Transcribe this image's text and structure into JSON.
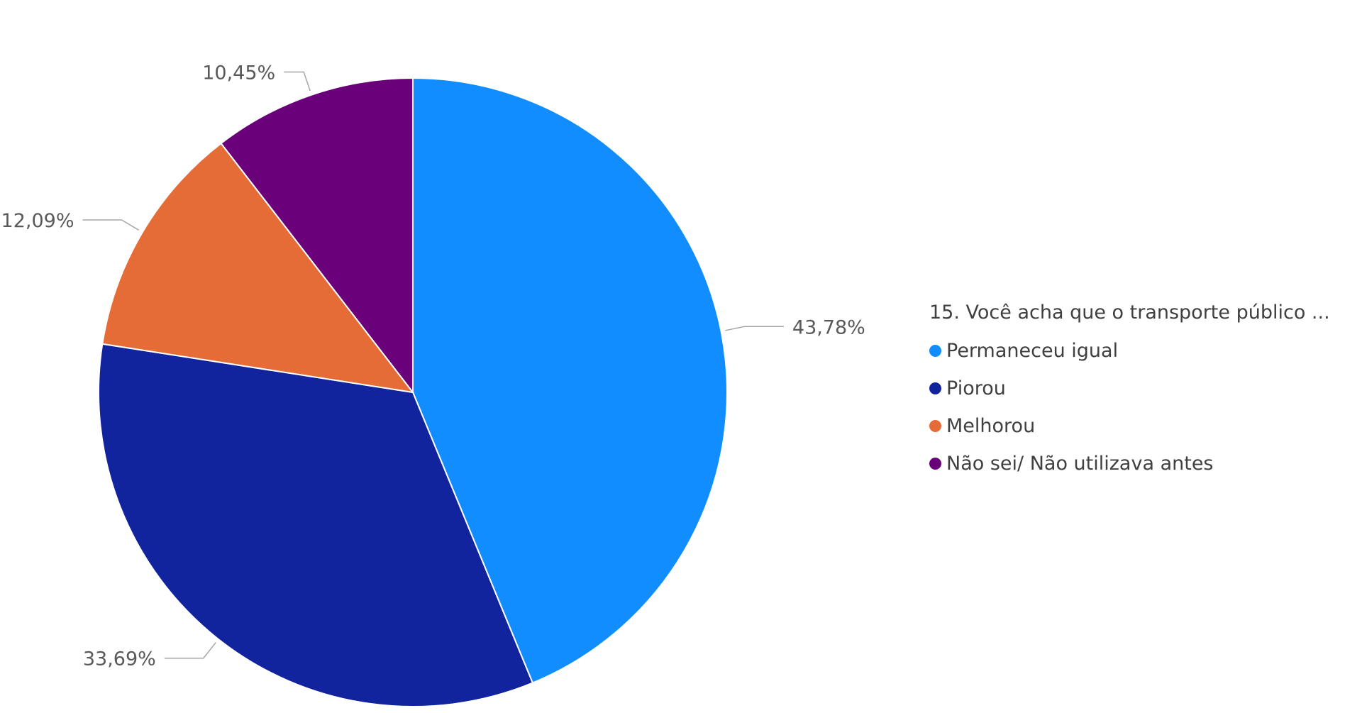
{
  "chart_data": {
    "type": "pie",
    "legend_title": "15. Você acha que o transporte público ...",
    "legend_position": "right",
    "slices": [
      {
        "name": "Permaneceu igual",
        "value": 43.78,
        "label": "43,78%",
        "color": "#118DFF"
      },
      {
        "name": "Piorou",
        "value": 33.69,
        "label": "33,69%",
        "color": "#12239E"
      },
      {
        "name": "Melhorou",
        "value": 12.09,
        "label": "12,09%",
        "color": "#E66C37"
      },
      {
        "name": "Não sei/ Não utilizava antes",
        "value": 10.45,
        "label": "10,45%",
        "color": "#6B007B"
      }
    ]
  }
}
